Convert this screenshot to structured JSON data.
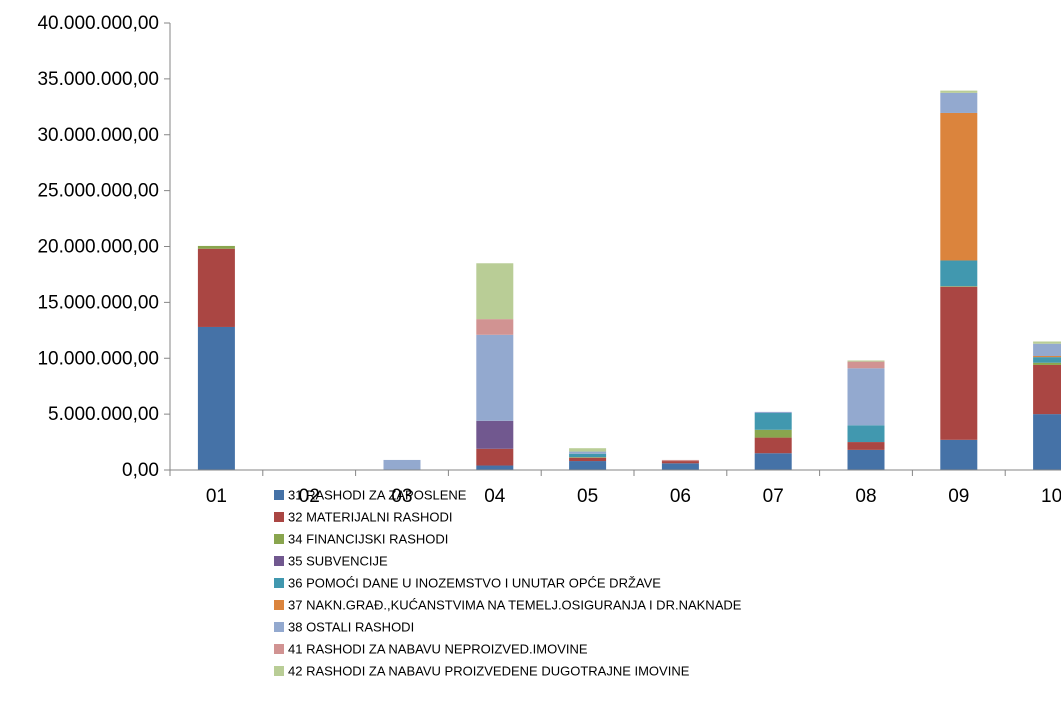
{
  "colors": [
    "#4572A7",
    "#AA4643",
    "#89A54E",
    "#71588F",
    "#4198AF",
    "#DB843D",
    "#93A9CF",
    "#D19392",
    "#B9CD96"
  ],
  "chart_data": {
    "type": "bar",
    "stacked": true,
    "title": "",
    "categories": [
      "01",
      "02",
      "03",
      "04",
      "05",
      "06",
      "07",
      "08",
      "09",
      "10"
    ],
    "ylim": [
      0,
      40000000
    ],
    "yticks": [
      0,
      5000000,
      10000000,
      15000000,
      20000000,
      25000000,
      30000000,
      35000000,
      40000000
    ],
    "ytick_labels": [
      "0,00",
      "5.000.000,00",
      "10.000.000,00",
      "15.000.000,00",
      "20.000.000,00",
      "25.000.000,00",
      "30.000.000,00",
      "35.000.000,00",
      "40.000.000,00"
    ],
    "legend_position": "bottom",
    "grid": false,
    "series": [
      {
        "name": "31 RASHODI ZA ZAPOSLENE",
        "values": [
          12800000,
          0,
          0,
          400000,
          800000,
          600000,
          1500000,
          1800000,
          2700000,
          5000000
        ]
      },
      {
        "name": "32 MATERIJALNI RASHODI",
        "values": [
          7000000,
          0,
          0,
          1500000,
          300000,
          200000,
          1400000,
          700000,
          13700000,
          4400000
        ]
      },
      {
        "name": "34 FINANCIJSKI RASHODI",
        "values": [
          250000,
          0,
          0,
          0,
          50000,
          0,
          700000,
          0,
          50000,
          200000
        ]
      },
      {
        "name": "35 SUBVENCIJE",
        "values": [
          0,
          0,
          0,
          2500000,
          0,
          0,
          0,
          0,
          0,
          0
        ]
      },
      {
        "name": "36 POMOĆI DANE U INOZEMSTVO I UNUTAR OPĆE DRŽAVE",
        "values": [
          0,
          0,
          0,
          0,
          300000,
          0,
          1500000,
          1500000,
          2300000,
          500000
        ]
      },
      {
        "name": "37 NAKN.GRAĐ.,KUĆANSTVIMA NA TEMELJ.OSIGURANJA I DR.NAKNADE",
        "values": [
          0,
          0,
          0,
          0,
          0,
          0,
          0,
          0,
          13200000,
          100000
        ]
      },
      {
        "name": "38 OSTALI RASHODI",
        "values": [
          0,
          0,
          900000,
          7700000,
          200000,
          0,
          100000,
          5100000,
          1800000,
          1100000
        ]
      },
      {
        "name": "41 RASHODI ZA NABAVU NEPROIZVED.IMOVINE",
        "values": [
          0,
          0,
          0,
          1400000,
          0,
          100000,
          0,
          600000,
          0,
          0
        ]
      },
      {
        "name": "42 RASHODI ZA NABAVU PROIZVEDENE DUGOTRAJNE IMOVINE",
        "values": [
          0,
          0,
          0,
          5000000,
          300000,
          0,
          0,
          100000,
          200000,
          200000
        ]
      }
    ]
  }
}
